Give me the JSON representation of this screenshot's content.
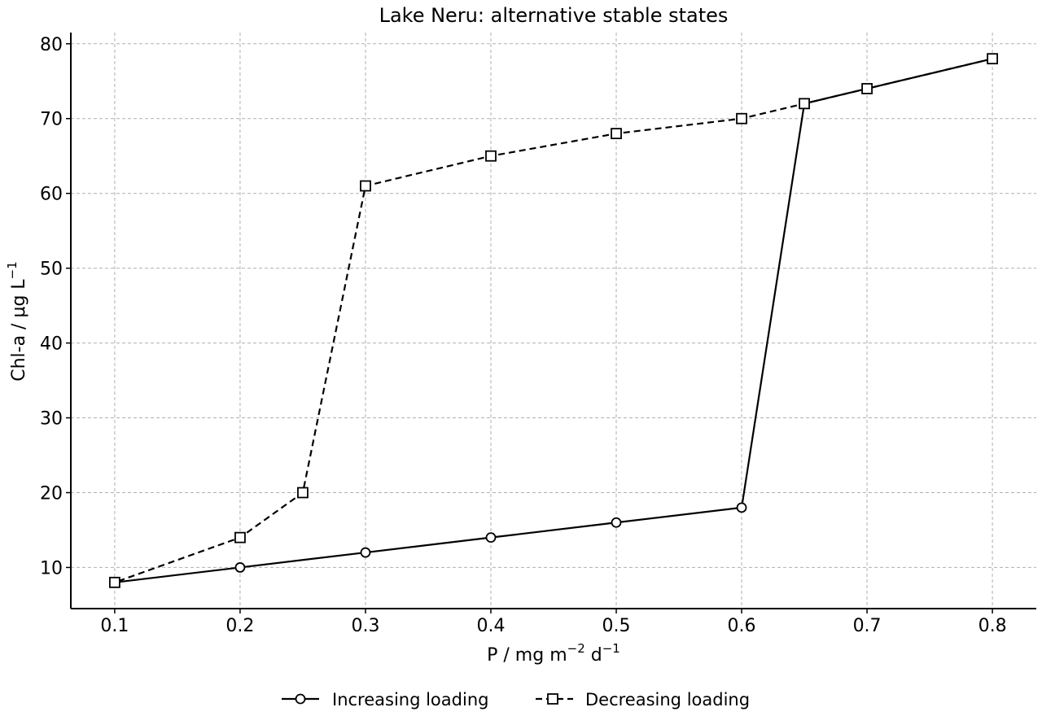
{
  "chart_data": {
    "type": "line",
    "title": "Lake Neru: alternative stable states",
    "xlabel": {
      "base": "P / mg m",
      "sup1": "−2",
      "mid": " d",
      "sup2": "−1"
    },
    "ylabel": {
      "base": "Chl-a / μg L",
      "sup": "−1"
    },
    "xlim": [
      0.065,
      0.835
    ],
    "ylim": [
      4.5,
      81.5
    ],
    "xticks": [
      0.1,
      0.2,
      0.3,
      0.4,
      0.5,
      0.6,
      0.7,
      0.8
    ],
    "yticks": [
      10,
      20,
      30,
      40,
      50,
      60,
      70,
      80
    ],
    "xtick_labels": [
      "0.1",
      "0.2",
      "0.3",
      "0.4",
      "0.5",
      "0.6",
      "0.7",
      "0.8"
    ],
    "ytick_labels": [
      "10",
      "20",
      "30",
      "40",
      "50",
      "60",
      "70",
      "80"
    ],
    "grid": true,
    "legend_position": "bottom-center",
    "series": [
      {
        "name": "Increasing loading",
        "line": "solid",
        "marker": "circle",
        "color": "#000000",
        "x": [
          0.1,
          0.2,
          0.3,
          0.4,
          0.5,
          0.6,
          0.65,
          0.7,
          0.8
        ],
        "y": [
          8,
          10,
          12,
          14,
          16,
          18,
          72,
          74,
          78
        ]
      },
      {
        "name": "Decreasing loading",
        "line": "dashed",
        "marker": "square",
        "color": "#000000",
        "x": [
          0.8,
          0.7,
          0.65,
          0.6,
          0.5,
          0.4,
          0.3,
          0.25,
          0.2,
          0.1
        ],
        "y": [
          78,
          74,
          72,
          70,
          68,
          65,
          61,
          20,
          14,
          8
        ]
      }
    ]
  }
}
